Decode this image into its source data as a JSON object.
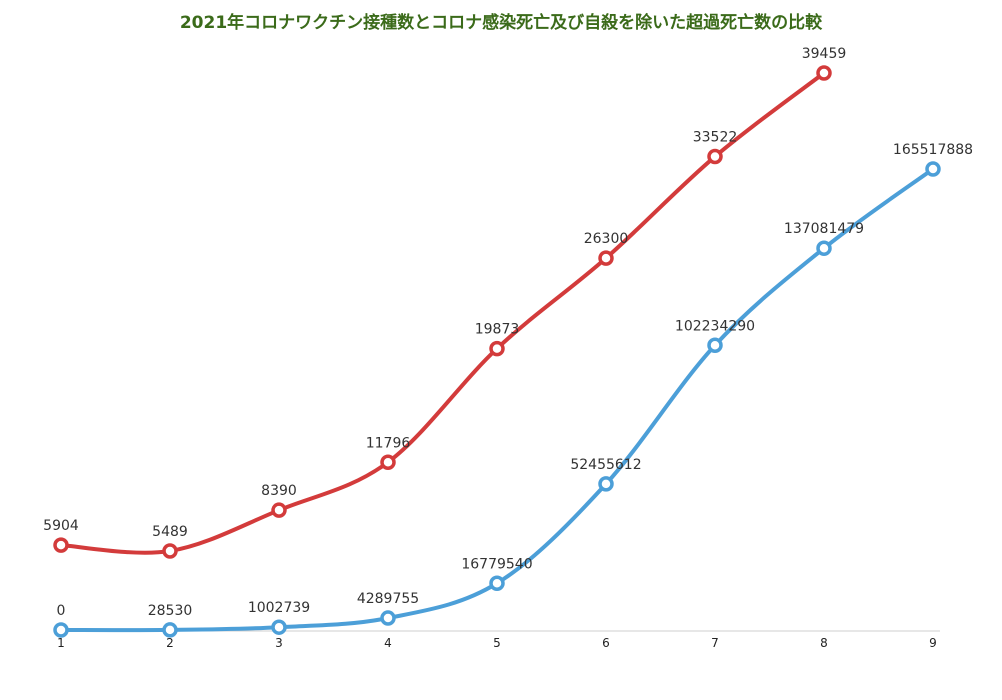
{
  "title": "2021年コロナワクチン接種数とコロナ感染死亡及び自殺を除いた超過死亡数の比較",
  "colors": {
    "series_red": "#d33b3b",
    "series_blue": "#4c9fd8",
    "title": "#3b6b1a"
  },
  "chart_data": {
    "type": "line",
    "title": "2021年コロナワクチン接種数とコロナ感染死亡及び自殺を除いた超過死亡数の比較",
    "xlabel": "",
    "ylabel": "",
    "x": [
      "1",
      "2",
      "3",
      "4",
      "5",
      "6",
      "7",
      "8",
      "9"
    ],
    "grid": false,
    "legend": "none",
    "series": [
      {
        "color": "#d33b3b",
        "x": [
          "1",
          "2",
          "3",
          "4",
          "5",
          "6",
          "7",
          "8"
        ],
        "values": [
          5904,
          5489,
          8390,
          11796,
          19873,
          26300,
          33522,
          39459
        ],
        "labels": [
          "5904",
          "5489",
          "8390",
          "11796",
          "19873",
          "26300",
          "33522",
          "39459"
        ]
      },
      {
        "color": "#4c9fd8",
        "x": [
          "1",
          "2",
          "3",
          "4",
          "5",
          "6",
          "7",
          "8",
          "9"
        ],
        "values": [
          0,
          28530,
          1002739,
          4289755,
          16779540,
          52455612,
          102234290,
          137081479,
          165517888
        ],
        "labels": [
          "0",
          "28530",
          "1002739",
          "4289755",
          "16779540",
          "52455612",
          "102234290",
          "137081479",
          "165517888"
        ]
      }
    ]
  }
}
